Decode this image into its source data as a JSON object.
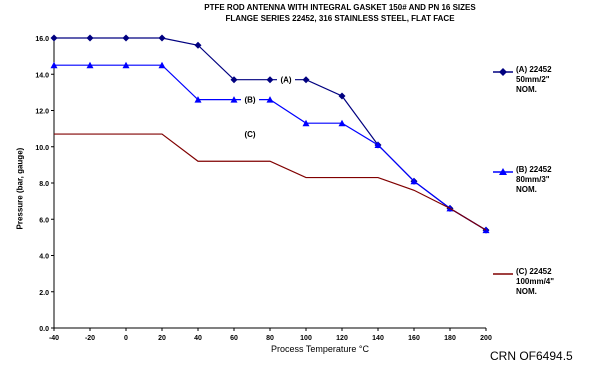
{
  "chart_data": {
    "type": "line",
    "title": "PTFE ROD ANTENNA WITH INTEGRAL GASKET 150# AND PN 16 SIZES",
    "subtitle": "FLANGE SERIES 22452, 316 STAINLESS STEEL, FLAT FACE",
    "xlabel": "Process Temperature °C",
    "ylabel": "Pressure (bar, gauge)",
    "xlim": [
      -40,
      200
    ],
    "ylim": [
      0,
      16
    ],
    "x_ticks": [
      -40,
      -20,
      0,
      20,
      40,
      60,
      80,
      100,
      120,
      140,
      160,
      180,
      200
    ],
    "y_ticks": [
      0,
      2,
      4,
      6,
      8,
      10,
      12,
      14,
      16
    ],
    "series": [
      {
        "name": "(A) 22452\n50mm/2\"\nNOM.",
        "short": "(A)",
        "marker": "diamond",
        "color": "#000080",
        "x": [
          -40,
          -20,
          0,
          20,
          40,
          60,
          80,
          100,
          120,
          140,
          160,
          180,
          200
        ],
        "values": [
          16.0,
          16.0,
          16.0,
          16.0,
          15.6,
          13.7,
          13.7,
          13.7,
          12.8,
          10.1,
          8.1,
          6.6,
          5.4
        ]
      },
      {
        "name": "(B) 22452\n80mm/3\"\nNOM.",
        "short": "(B)",
        "marker": "triangle",
        "color": "#0000ff",
        "x": [
          -40,
          -20,
          0,
          20,
          40,
          60,
          80,
          100,
          120,
          140,
          160,
          180,
          200
        ],
        "values": [
          14.5,
          14.5,
          14.5,
          14.5,
          12.6,
          12.6,
          12.6,
          11.3,
          11.3,
          10.1,
          8.1,
          6.6,
          5.4
        ]
      },
      {
        "name": "(C) 22452\n100mm/4\"\nNOM.",
        "short": "(C)",
        "marker": "none",
        "color": "#800000",
        "x": [
          -40,
          20,
          40,
          80,
          100,
          140,
          160,
          180,
          200
        ],
        "values": [
          10.7,
          10.7,
          9.2,
          9.2,
          8.3,
          8.3,
          7.6,
          6.6,
          5.4
        ]
      }
    ],
    "annotations": [
      {
        "text": "(A)",
        "series": 0,
        "x": 80
      },
      {
        "text": "(B)",
        "series": 1,
        "x": 60
      },
      {
        "text": "(C)",
        "series": 2,
        "x": 60
      }
    ],
    "legend_position": "right",
    "grid": false
  },
  "footer_code": "CRN OF6494.5"
}
